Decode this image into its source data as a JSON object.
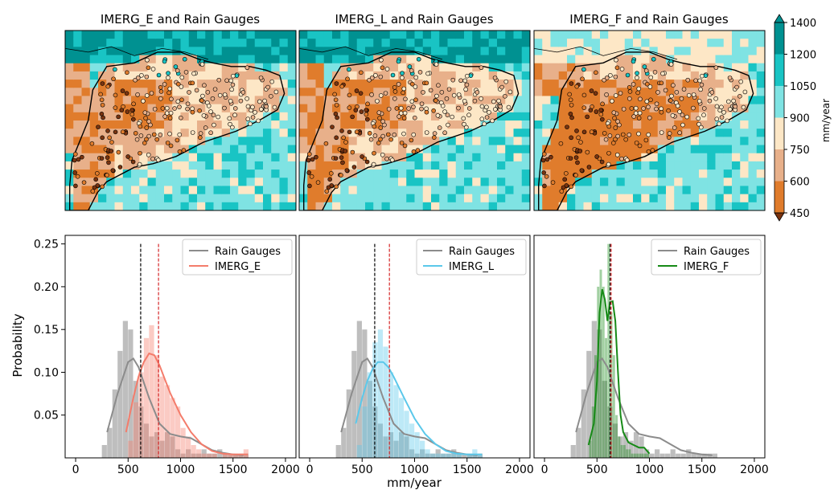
{
  "colors": {
    "gauge": "#8c8c8c",
    "imerg_e": "#f47c6b",
    "imerg_l": "#5bc8ea",
    "imerg_f": "#168a16",
    "sea_low": "#7fe3e3",
    "sea_mid": "#19c4c4",
    "sea_high": "#009191",
    "land_low": "#e07c2c",
    "land_mid": "#e8b08a",
    "land_high": "#fde7c6"
  },
  "chart_data": [
    {
      "type": "heatmap",
      "title": "IMERG_E and Rain Gauges",
      "description_level": "satellite annual precipitation field with gauge markers"
    },
    {
      "type": "heatmap",
      "title": "IMERG_L and Rain Gauges"
    },
    {
      "type": "heatmap",
      "title": "IMERG_F and Rain Gauges"
    },
    {
      "type": "colorbar",
      "label": "mm/year",
      "ticks": [
        450,
        600,
        750,
        900,
        1050,
        1200,
        1400
      ],
      "colors": [
        "#e07c2c",
        "#e8b08a",
        "#fde7c6",
        "#7fe3e3",
        "#19c4c4",
        "#009191"
      ]
    },
    {
      "type": "bar",
      "ylabel": "Probability",
      "xlabel": "mm/year",
      "xlim": [
        -100,
        2100
      ],
      "ylim": [
        0,
        0.26
      ],
      "xticks": [
        0,
        500,
        1000,
        1500,
        2000
      ],
      "yticks": [
        0.05,
        0.1,
        0.15,
        0.2,
        0.25
      ],
      "ytick_labels": [
        "0.05",
        "0.10",
        "0.15",
        "0.20",
        "0.25"
      ],
      "legend": [
        "Rain Gauges",
        "IMERG_E"
      ],
      "legend_position": "top-right",
      "bin_width": 50,
      "series": [
        {
          "name": "Rain Gauges",
          "bin_start": 250,
          "values": [
            0.015,
            0.035,
            0.08,
            0.125,
            0.16,
            0.15,
            0.09,
            0.06,
            0.04,
            0.025,
            0.03,
            0.02,
            0.03,
            0.025,
            0.01,
            0.005,
            0.01,
            0.005,
            0.005,
            0.01,
            0.005,
            0.005,
            0.01,
            0.005,
            0.005,
            0.005,
            0.005,
            0.005
          ]
        },
        {
          "name": "IMERG_E",
          "bin_start": 500,
          "values": [
            0.02,
            0.065,
            0.1,
            0.14,
            0.155,
            0.12,
            0.095,
            0.085,
            0.07,
            0.06,
            0.035,
            0.025,
            0.015,
            0.01,
            0.005,
            0.005,
            0.005,
            0.0,
            0.005,
            0.005,
            0.005,
            0.005,
            0.01
          ]
        }
      ],
      "kde": [
        {
          "name": "Rain Gauges",
          "x": [
            300,
            400,
            500,
            550,
            600,
            700,
            800,
            900,
            1000,
            1100,
            1200,
            1300,
            1400,
            1500,
            1600
          ],
          "y": [
            0.03,
            0.075,
            0.112,
            0.116,
            0.106,
            0.07,
            0.04,
            0.028,
            0.025,
            0.023,
            0.016,
            0.009,
            0.006,
            0.004,
            0.003
          ]
        },
        {
          "name": "IMERG_E",
          "x": [
            480,
            550,
            600,
            650,
            700,
            750,
            800,
            850,
            900,
            1000,
            1100,
            1200,
            1300,
            1400,
            1500,
            1640
          ],
          "y": [
            0.03,
            0.07,
            0.095,
            0.112,
            0.122,
            0.12,
            0.108,
            0.092,
            0.076,
            0.05,
            0.03,
            0.016,
            0.008,
            0.005,
            0.004,
            0.004
          ]
        }
      ],
      "vlines": [
        {
          "x": 620,
          "color": "#000000"
        },
        {
          "x": 790,
          "color": "#d62728"
        }
      ]
    },
    {
      "type": "bar",
      "xlabel": "",
      "xticks": [
        0,
        500,
        1000,
        1500,
        2000
      ],
      "legend": [
        "Rain Gauges",
        "IMERG_L"
      ],
      "legend_position": "top-right",
      "bin_width": 50,
      "series": [
        {
          "name": "Rain Gauges",
          "bin_start": 250,
          "values": [
            0.015,
            0.035,
            0.08,
            0.125,
            0.16,
            0.15,
            0.09,
            0.06,
            0.04,
            0.025,
            0.03,
            0.02,
            0.03,
            0.025,
            0.01,
            0.005,
            0.01,
            0.005,
            0.005,
            0.01,
            0.005,
            0.005,
            0.01,
            0.005,
            0.005,
            0.005,
            0.005,
            0.005
          ]
        },
        {
          "name": "IMERG_L",
          "bin_start": 450,
          "values": [
            0.015,
            0.06,
            0.1,
            0.135,
            0.15,
            0.13,
            0.1,
            0.085,
            0.07,
            0.055,
            0.04,
            0.03,
            0.02,
            0.01,
            0.005,
            0.005,
            0.005,
            0.005,
            0.005,
            0.005,
            0.0,
            0.005,
            0.01,
            0.005
          ]
        }
      ],
      "kde": [
        {
          "name": "Rain Gauges",
          "x": [
            300,
            400,
            500,
            550,
            600,
            700,
            800,
            900,
            1000,
            1100,
            1200,
            1300,
            1400,
            1500,
            1600
          ],
          "y": [
            0.03,
            0.075,
            0.112,
            0.116,
            0.106,
            0.07,
            0.04,
            0.028,
            0.025,
            0.023,
            0.016,
            0.009,
            0.006,
            0.004,
            0.003
          ]
        },
        {
          "name": "IMERG_L",
          "x": [
            440,
            500,
            550,
            600,
            650,
            700,
            750,
            800,
            900,
            1000,
            1100,
            1200,
            1300,
            1400,
            1500,
            1640
          ],
          "y": [
            0.04,
            0.07,
            0.09,
            0.104,
            0.112,
            0.112,
            0.106,
            0.095,
            0.07,
            0.046,
            0.028,
            0.016,
            0.008,
            0.005,
            0.004,
            0.004
          ]
        }
      ],
      "vlines": [
        {
          "x": 620,
          "color": "#000000"
        },
        {
          "x": 760,
          "color": "#d62728"
        }
      ]
    },
    {
      "type": "bar",
      "xlabel": "",
      "xticks": [
        0,
        500,
        1000,
        1500,
        2000
      ],
      "legend": [
        "Rain Gauges",
        "IMERG_F"
      ],
      "legend_position": "top-right",
      "bin_width": 25,
      "series": [
        {
          "name": "Rain Gauges",
          "bin_start": 250,
          "bin_width": 50,
          "values": [
            0.015,
            0.035,
            0.08,
            0.125,
            0.16,
            0.15,
            0.09,
            0.06,
            0.04,
            0.025,
            0.03,
            0.02,
            0.03,
            0.025,
            0.01,
            0.005,
            0.01,
            0.005,
            0.005,
            0.01,
            0.005,
            0.005,
            0.01,
            0.005,
            0.005,
            0.005,
            0.005,
            0.005
          ]
        },
        {
          "name": "IMERG_F",
          "bin_start": 425,
          "values": [
            0.02,
            0.06,
            0.12,
            0.2,
            0.22,
            0.2,
            0.14,
            0.25,
            0.17,
            0.12,
            0.05,
            0.025,
            0.015,
            0.015,
            0.01,
            0.01,
            0.005,
            0.005,
            0.005,
            0.005,
            0.005,
            0.005,
            0.005
          ]
        }
      ],
      "kde": [
        {
          "name": "Rain Gauges",
          "x": [
            300,
            400,
            500,
            550,
            600,
            700,
            800,
            900,
            1000,
            1100,
            1200,
            1300,
            1400,
            1500,
            1600
          ],
          "y": [
            0.03,
            0.075,
            0.112,
            0.116,
            0.106,
            0.07,
            0.04,
            0.028,
            0.025,
            0.023,
            0.016,
            0.009,
            0.006,
            0.004,
            0.003
          ]
        },
        {
          "name": "IMERG_F",
          "x": [
            420,
            470,
            500,
            525,
            550,
            575,
            600,
            625,
            650,
            675,
            700,
            725,
            750,
            800,
            850,
            900,
            950,
            1000
          ],
          "y": [
            0.015,
            0.04,
            0.09,
            0.17,
            0.197,
            0.185,
            0.16,
            0.182,
            0.183,
            0.16,
            0.1,
            0.05,
            0.03,
            0.018,
            0.015,
            0.012,
            0.012,
            0.005
          ]
        }
      ],
      "vlines": [
        {
          "x": 625,
          "color": "#000000"
        },
        {
          "x": 635,
          "color": "#d62728"
        }
      ]
    }
  ]
}
